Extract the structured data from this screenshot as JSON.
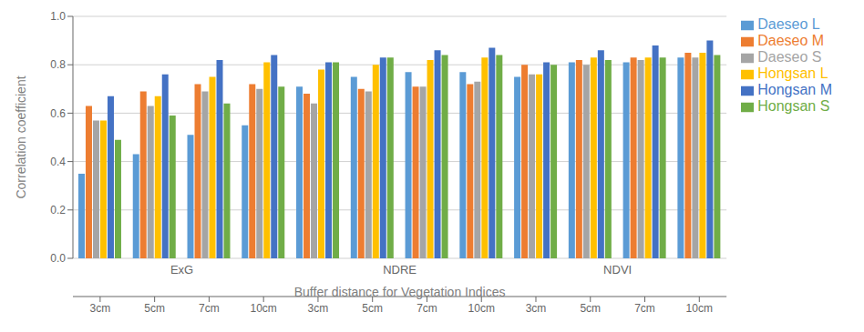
{
  "chart_data": {
    "type": "bar",
    "groups": [
      {
        "name": "ExG",
        "categories": [
          "3cm",
          "5cm",
          "7cm",
          "10cm"
        ]
      },
      {
        "name": "NDRE",
        "categories": [
          "3cm",
          "5cm",
          "7cm",
          "10cm"
        ]
      },
      {
        "name": "NDVI",
        "categories": [
          "3cm",
          "5cm",
          "7cm",
          "10cm"
        ]
      }
    ],
    "series": [
      {
        "name": "Daeseo L",
        "color": "#5b9bd5",
        "values": [
          0.35,
          0.43,
          0.51,
          0.55,
          0.71,
          0.75,
          0.77,
          0.77,
          0.75,
          0.81,
          0.81,
          0.83
        ]
      },
      {
        "name": "Daeseo M",
        "color": "#ed7d31",
        "values": [
          0.63,
          0.69,
          0.72,
          0.72,
          0.68,
          0.7,
          0.71,
          0.72,
          0.8,
          0.82,
          0.83,
          0.85
        ]
      },
      {
        "name": "Daeseo S",
        "color": "#a5a5a5",
        "values": [
          0.57,
          0.63,
          0.69,
          0.7,
          0.64,
          0.69,
          0.71,
          0.73,
          0.76,
          0.8,
          0.82,
          0.83
        ]
      },
      {
        "name": "Hongsan L",
        "color": "#ffc000",
        "values": [
          0.57,
          0.67,
          0.75,
          0.81,
          0.78,
          0.8,
          0.82,
          0.83,
          0.76,
          0.83,
          0.83,
          0.85
        ]
      },
      {
        "name": "Hongsan M",
        "color": "#4472c4",
        "values": [
          0.67,
          0.76,
          0.82,
          0.84,
          0.81,
          0.83,
          0.86,
          0.87,
          0.81,
          0.86,
          0.88,
          0.9
        ]
      },
      {
        "name": "Hongsan S",
        "color": "#70ad47",
        "values": [
          0.49,
          0.59,
          0.64,
          0.71,
          0.81,
          0.83,
          0.84,
          0.84,
          0.8,
          0.82,
          0.83,
          0.84
        ]
      }
    ],
    "xlabel": "Buffer distance for Vegetation Indices",
    "ylabel": "Correlation coefficient",
    "ylim": [
      0.0,
      1.0
    ],
    "yticks": [
      {
        "value": 0.0,
        "label": "0.0"
      },
      0.2,
      0.4,
      0.6,
      0.8,
      {
        "value": 1.0,
        "label": "1.0"
      }
    ],
    "grid": true,
    "legend": "right"
  }
}
